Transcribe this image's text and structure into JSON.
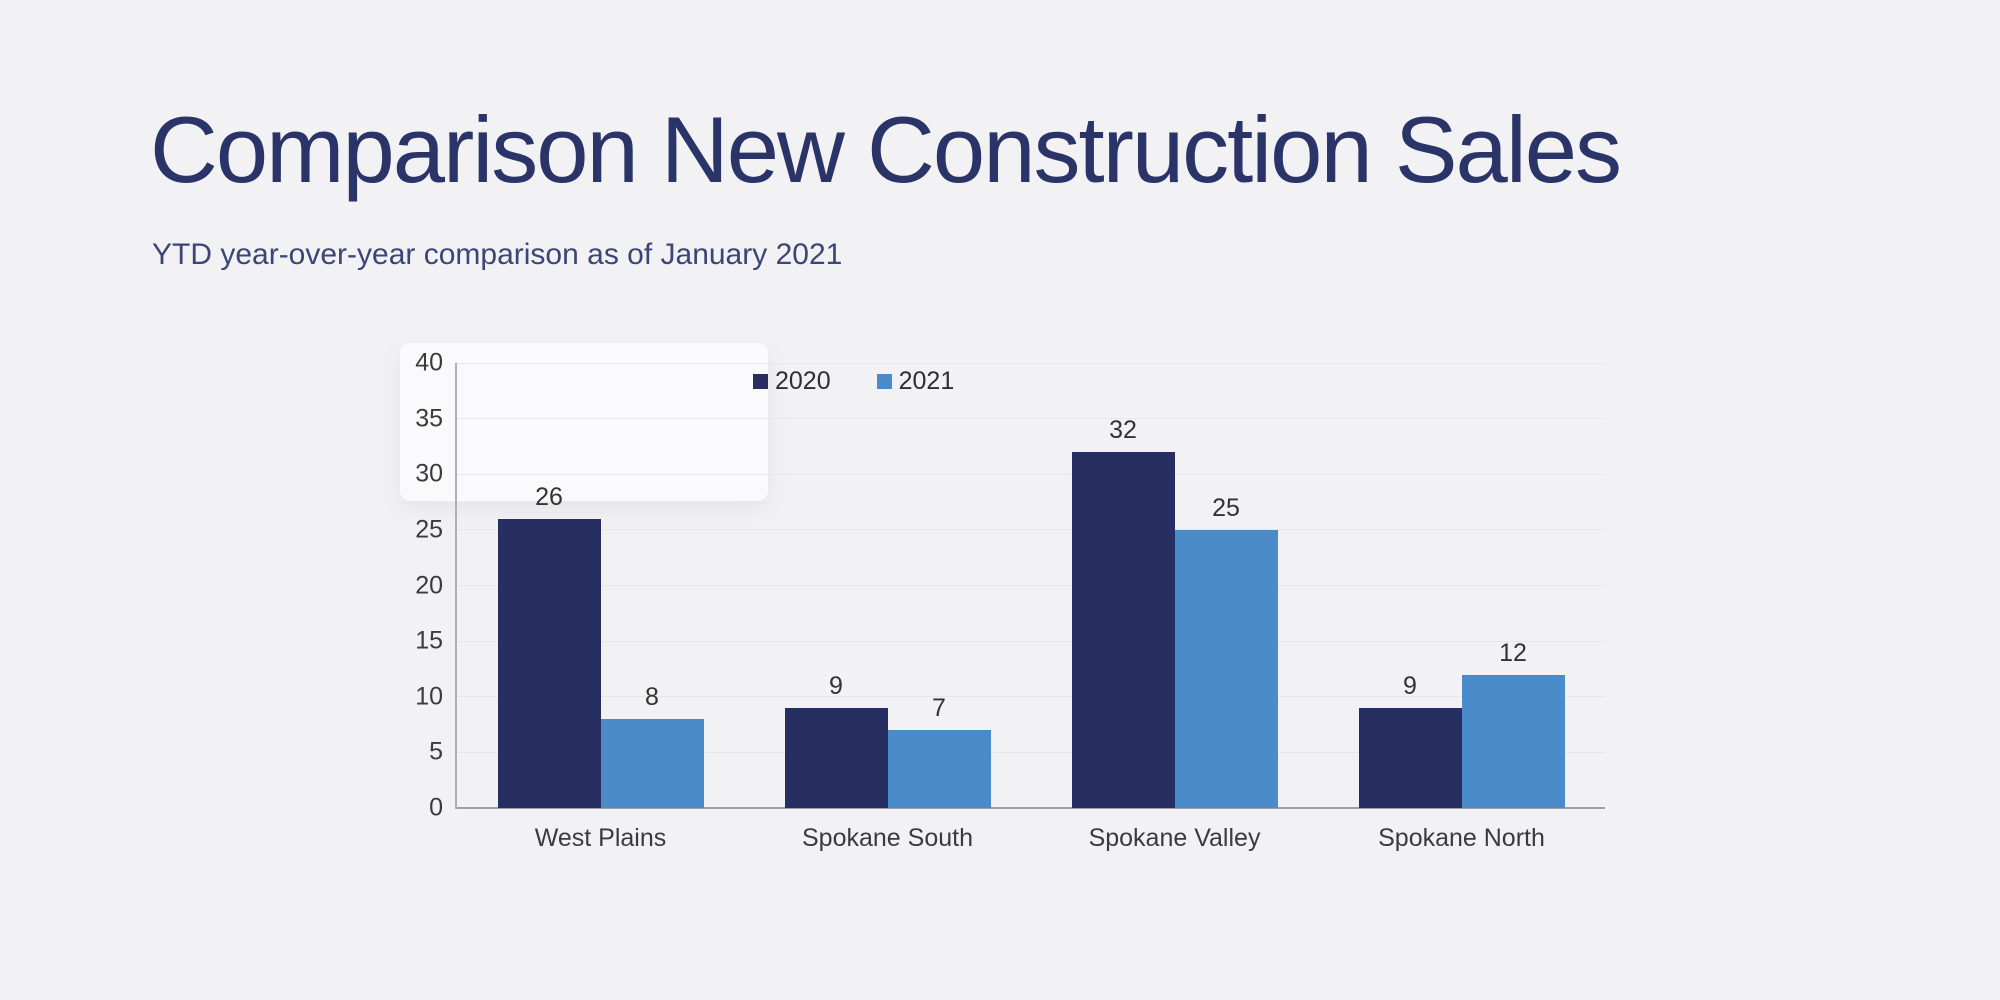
{
  "page": {
    "background_color": "#f2f2f4"
  },
  "header": {
    "title": "Comparison New Construction Sales",
    "subtitle": "YTD year-over-year comparison as of January 2021",
    "title_color": "#2b3468"
  },
  "chart_data": {
    "type": "bar",
    "title": "",
    "xlabel": "",
    "ylabel": "",
    "categories": [
      "West Plains",
      "Spokane South",
      "Spokane Valley",
      "Spokane North"
    ],
    "series": [
      {
        "name": "2020",
        "color": "#272e62",
        "values": [
          26,
          9,
          32,
          9
        ]
      },
      {
        "name": "2021",
        "color": "#4a8cc9",
        "values": [
          8,
          7,
          25,
          12
        ]
      }
    ],
    "ylim": [
      0,
      40
    ],
    "yticks": [
      0,
      5,
      10,
      15,
      20,
      25,
      30,
      35,
      40
    ],
    "grid": true,
    "legend_position": "top-inside",
    "value_labels": true,
    "colors": {
      "gridline": "#e4e7f0",
      "axis_line": "#9fa0a5",
      "tick_text": "#3b3b3b",
      "value_text": "#333333"
    }
  }
}
